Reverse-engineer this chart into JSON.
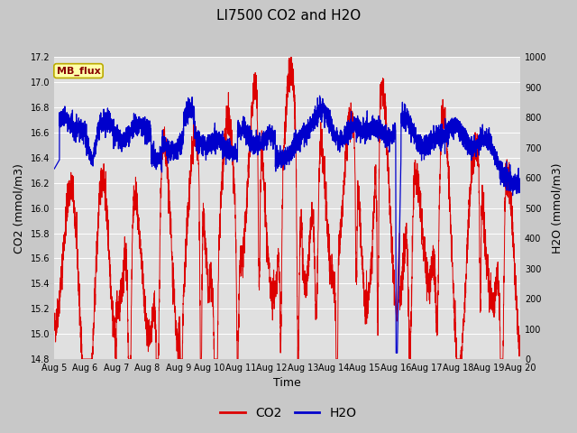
{
  "title": "LI7500 CO2 and H2O",
  "xlabel": "Time",
  "ylabel_left": "CO2 (mmol/m3)",
  "ylabel_right": "H2O (mmol/m3)",
  "co2_ylim": [
    14.8,
    17.2
  ],
  "h2o_ylim": [
    0,
    1000
  ],
  "co2_color": "#dd0000",
  "h2o_color": "#0000cc",
  "fig_bg_color": "#c8c8c8",
  "plot_bg_color": "#e0e0e0",
  "grid_color": "#ffffff",
  "annotation_text": "MB_flux",
  "annotation_bg": "#ffffaa",
  "annotation_border": "#bbaa00",
  "x_tick_labels": [
    "Aug 5",
    "Aug 6",
    "Aug 7",
    "Aug 8",
    "Aug 9",
    "Aug 10",
    "Aug 11",
    "Aug 12",
    "Aug 13",
    "Aug 14",
    "Aug 15",
    "Aug 16",
    "Aug 17",
    "Aug 18",
    "Aug 19",
    "Aug 20"
  ],
  "x_tick_positions": [
    0,
    288,
    576,
    864,
    1152,
    1440,
    1728,
    2016,
    2304,
    2592,
    2880,
    3168,
    3456,
    3744,
    4032,
    4320
  ],
  "co2_yticks": [
    14.8,
    15.0,
    15.2,
    15.4,
    15.6,
    15.8,
    16.0,
    16.2,
    16.4,
    16.6,
    16.8,
    17.0,
    17.2
  ],
  "h2o_yticks": [
    0,
    100,
    200,
    300,
    400,
    500,
    600,
    700,
    800,
    900,
    1000
  ],
  "n_points": 4321,
  "random_seed": 42
}
